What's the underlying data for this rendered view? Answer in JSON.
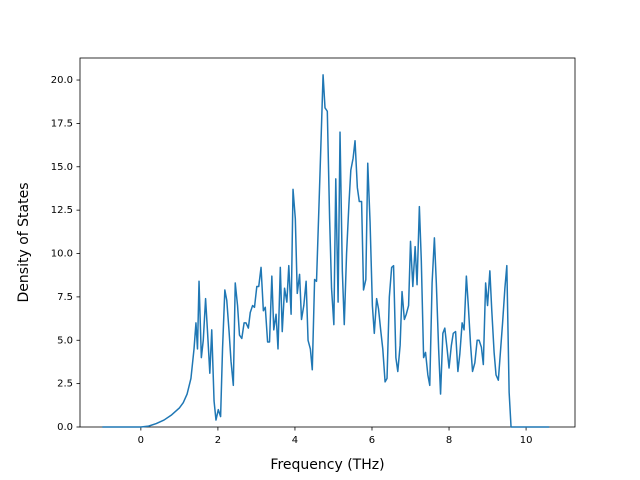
{
  "chart_data": {
    "type": "line",
    "xlabel": "Frequency (THz)",
    "ylabel": "Density of States",
    "x": [
      -1.0,
      0,
      0.2,
      0.4,
      0.6,
      0.8,
      1.0,
      1.1,
      1.2,
      1.3,
      1.38,
      1.43,
      1.47,
      1.51,
      1.57,
      1.62,
      1.68,
      1.73,
      1.79,
      1.84,
      1.9,
      1.95,
      2.01,
      2.07,
      2.12,
      2.18,
      2.23,
      2.29,
      2.34,
      2.4,
      2.45,
      2.51,
      2.56,
      2.62,
      2.68,
      2.73,
      2.79,
      2.84,
      2.9,
      2.95,
      3.01,
      3.06,
      3.12,
      3.18,
      3.23,
      3.29,
      3.34,
      3.4,
      3.45,
      3.51,
      3.56,
      3.62,
      3.67,
      3.73,
      3.79,
      3.84,
      3.9,
      3.95,
      4.01,
      4.06,
      4.12,
      4.17,
      4.23,
      4.29,
      4.34,
      4.4,
      4.45,
      4.51,
      4.56,
      4.62,
      4.67,
      4.73,
      4.78,
      4.84,
      4.9,
      4.95,
      5.01,
      5.06,
      5.12,
      5.17,
      5.23,
      5.28,
      5.34,
      5.4,
      5.45,
      5.51,
      5.56,
      5.62,
      5.67,
      5.73,
      5.78,
      5.84,
      5.89,
      5.95,
      6.01,
      6.06,
      6.12,
      6.17,
      6.23,
      6.28,
      6.34,
      6.39,
      6.45,
      6.51,
      6.56,
      6.62,
      6.67,
      6.73,
      6.78,
      6.84,
      6.89,
      6.95,
      7.0,
      7.06,
      7.12,
      7.17,
      7.23,
      7.28,
      7.34,
      7.39,
      7.45,
      7.5,
      7.56,
      7.62,
      7.67,
      7.73,
      7.78,
      7.84,
      7.89,
      7.95,
      8.0,
      8.06,
      8.11,
      8.17,
      8.23,
      8.28,
      8.34,
      8.39,
      8.45,
      8.5,
      8.56,
      8.61,
      8.67,
      8.73,
      8.78,
      8.84,
      8.89,
      8.95,
      9.0,
      9.06,
      9.11,
      9.17,
      9.22,
      9.28,
      9.34,
      9.39,
      9.45,
      9.5,
      9.56,
      9.61,
      10.6
    ],
    "series": [
      {
        "color": "#1f77b4",
        "values": [
          0,
          0,
          0.05,
          0.2,
          0.4,
          0.7,
          1.1,
          1.4,
          1.9,
          2.8,
          4.5,
          6.0,
          4.5,
          8.4,
          4.0,
          5.0,
          7.4,
          5.5,
          3.1,
          5.6,
          1.5,
          0.4,
          1.0,
          0.6,
          4.5,
          7.9,
          7.3,
          5.5,
          3.8,
          2.4,
          8.3,
          7.0,
          5.3,
          5.1,
          6.0,
          6.0,
          5.7,
          6.6,
          7.0,
          6.9,
          8.1,
          8.1,
          9.2,
          6.7,
          6.9,
          4.9,
          4.9,
          8.7,
          5.6,
          6.5,
          4.5,
          9.2,
          5.5,
          8.0,
          7.2,
          9.3,
          6.5,
          13.7,
          12.0,
          7.7,
          8.8,
          6.2,
          7.0,
          8.4,
          5.0,
          4.5,
          3.3,
          8.5,
          8.4,
          12.5,
          16.0,
          20.3,
          18.4,
          18.2,
          12.0,
          8.0,
          5.9,
          14.3,
          7.2,
          17.0,
          9.0,
          5.9,
          10.0,
          12.8,
          14.8,
          15.5,
          16.5,
          13.8,
          13.0,
          13.0,
          7.9,
          8.5,
          15.2,
          11.8,
          7.0,
          5.4,
          7.4,
          6.8,
          5.5,
          4.5,
          2.6,
          2.8,
          7.5,
          9.2,
          9.3,
          4.0,
          3.2,
          4.7,
          7.8,
          6.2,
          6.5,
          7.0,
          10.7,
          8.1,
          10.4,
          8.2,
          12.7,
          9.6,
          4.0,
          4.3,
          3.0,
          2.4,
          8.3,
          10.9,
          8.3,
          4.5,
          1.9,
          5.4,
          5.7,
          4.5,
          3.4,
          4.7,
          5.4,
          5.5,
          3.2,
          4.2,
          6.0,
          5.6,
          8.7,
          7.0,
          4.7,
          3.2,
          3.7,
          5.0,
          5.0,
          4.6,
          3.6,
          8.3,
          7.0,
          9.0,
          6.7,
          4.3,
          3.0,
          2.7,
          4.5,
          6.0,
          8.0,
          9.3,
          2.0,
          0.0,
          0
        ]
      }
    ],
    "xlim": [
      -1.58,
      11.27
    ],
    "xticks": [
      0,
      2,
      4,
      6,
      8,
      10
    ],
    "ylim": [
      0,
      21.27
    ],
    "yticks": [
      {
        "value": 0,
        "label": "0.0"
      },
      {
        "value": 2.5,
        "label": "2.5"
      },
      {
        "value": 5,
        "label": "5.0"
      },
      {
        "value": 7.5,
        "label": "7.5"
      },
      {
        "value": 10,
        "label": "10.0"
      },
      {
        "value": 12.5,
        "label": "12.5"
      },
      {
        "value": 15,
        "label": "15.0"
      },
      {
        "value": 17.5,
        "label": "17.5"
      },
      {
        "value": 20,
        "label": "20.0"
      }
    ],
    "grid": false
  }
}
